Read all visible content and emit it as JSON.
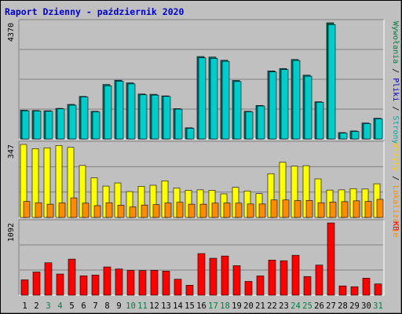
{
  "title": "Raport Dzienny -  październik 2020",
  "colors": {
    "background": "#c0c0c0",
    "panel": "#c0c0c0",
    "title": "#0000cc",
    "hits": "#00cccc",
    "hits_dark": "#007777",
    "files": "#00aaff",
    "pages": "#ffff00",
    "visits": "#ff8c00",
    "kbytes": "#ff0000",
    "weekend": "#008040",
    "weekday": "#000000"
  },
  "chart_data": [
    {
      "type": "bar",
      "name": "top",
      "ymax_label": "4370",
      "ylim": [
        0,
        4370
      ],
      "right_label": [
        {
          "text": "Wywołania",
          "color": "#008040"
        },
        {
          "text": " / ",
          "color": "#000000"
        },
        {
          "text": "Pliki",
          "color": "#0000cc"
        },
        {
          "text": " / ",
          "color": "#000000"
        },
        {
          "text": "Strony",
          "color": "#00aaaa"
        }
      ],
      "categories": [
        "1",
        "2",
        "3",
        "4",
        "5",
        "6",
        "7",
        "8",
        "9",
        "10",
        "11",
        "12",
        "13",
        "14",
        "15",
        "16",
        "17",
        "18",
        "19",
        "20",
        "21",
        "22",
        "23",
        "24",
        "25",
        "26",
        "27",
        "28",
        "29",
        "30",
        "31"
      ],
      "series": [
        {
          "name": "Wywołania",
          "values": [
            1080,
            1070,
            1060,
            1150,
            1300,
            1600,
            1040,
            2050,
            2210,
            2110,
            1690,
            1680,
            1620,
            1140,
            420,
            3100,
            3080,
            2960,
            2200,
            1040,
            1260,
            2560,
            2650,
            2990,
            2400,
            1400,
            4370,
            240,
            300,
            600,
            780
          ]
        },
        {
          "name": "Pliki",
          "values": [
            1060,
            1050,
            1040,
            1130,
            1270,
            1580,
            1020,
            2000,
            2170,
            2070,
            1660,
            1650,
            1600,
            1120,
            400,
            3050,
            3030,
            2920,
            2160,
            1020,
            1240,
            2520,
            2610,
            2950,
            2360,
            1380,
            4300,
            220,
            280,
            580,
            760
          ]
        }
      ]
    },
    {
      "type": "bar",
      "name": "middle",
      "ymax_label": "347",
      "ylim": [
        0,
        347
      ],
      "right_label": [
        {
          "text": "Wizyty",
          "color": "#ffcc00"
        },
        {
          "text": " / ",
          "color": "#000000"
        },
        {
          "text": "Lokalizacje",
          "color": "#ff8c00"
        }
      ],
      "categories": [
        "1",
        "2",
        "3",
        "4",
        "5",
        "6",
        "7",
        "8",
        "9",
        "10",
        "11",
        "12",
        "13",
        "14",
        "15",
        "16",
        "17",
        "18",
        "19",
        "20",
        "21",
        "22",
        "23",
        "24",
        "25",
        "26",
        "27",
        "28",
        "29",
        "30",
        "31"
      ],
      "series": [
        {
          "name": "Wizyty",
          "values": [
            347,
            327,
            331,
            342,
            333,
            247,
            188,
            149,
            164,
            123,
            148,
            153,
            174,
            139,
            129,
            131,
            129,
            112,
            143,
            126,
            113,
            208,
            262,
            244,
            246,
            183,
            130,
            131,
            137,
            135,
            160
          ]
        },
        {
          "name": "Lokalizacje",
          "values": [
            76,
            70,
            63,
            69,
            93,
            68,
            56,
            70,
            58,
            50,
            59,
            61,
            69,
            72,
            63,
            63,
            68,
            69,
            68,
            64,
            64,
            83,
            83,
            80,
            81,
            70,
            73,
            75,
            79,
            76,
            86
          ]
        }
      ]
    },
    {
      "type": "bar",
      "name": "bottom",
      "ymax_label": "1092",
      "ylim": [
        0,
        1092
      ],
      "right_label": [
        {
          "text": "KB",
          "color": "#ff0000"
        }
      ],
      "categories": [
        "1",
        "2",
        "3",
        "4",
        "5",
        "6",
        "7",
        "8",
        "9",
        "10",
        "11",
        "12",
        "13",
        "14",
        "15",
        "16",
        "17",
        "18",
        "19",
        "20",
        "21",
        "22",
        "23",
        "24",
        "25",
        "26",
        "27",
        "28",
        "29",
        "30",
        "31"
      ],
      "series": [
        {
          "name": "KB",
          "values": [
            232,
            350,
            490,
            320,
            545,
            292,
            305,
            427,
            396,
            374,
            372,
            376,
            364,
            241,
            150,
            629,
            558,
            592,
            446,
            208,
            291,
            531,
            521,
            603,
            282,
            455,
            1092,
            140,
            128,
            257,
            170
          ]
        }
      ]
    }
  ],
  "x_axis": {
    "labels": [
      "1",
      "2",
      "3",
      "4",
      "5",
      "6",
      "7",
      "8",
      "9",
      "10",
      "11",
      "12",
      "13",
      "14",
      "15",
      "16",
      "17",
      "18",
      "19",
      "20",
      "21",
      "22",
      "23",
      "24",
      "25",
      "26",
      "27",
      "28",
      "29",
      "30",
      "31"
    ],
    "weekend": [
      false,
      false,
      true,
      true,
      false,
      false,
      false,
      false,
      false,
      true,
      true,
      false,
      false,
      false,
      false,
      false,
      true,
      true,
      false,
      false,
      false,
      false,
      false,
      true,
      true,
      false,
      false,
      false,
      false,
      false,
      true
    ]
  }
}
